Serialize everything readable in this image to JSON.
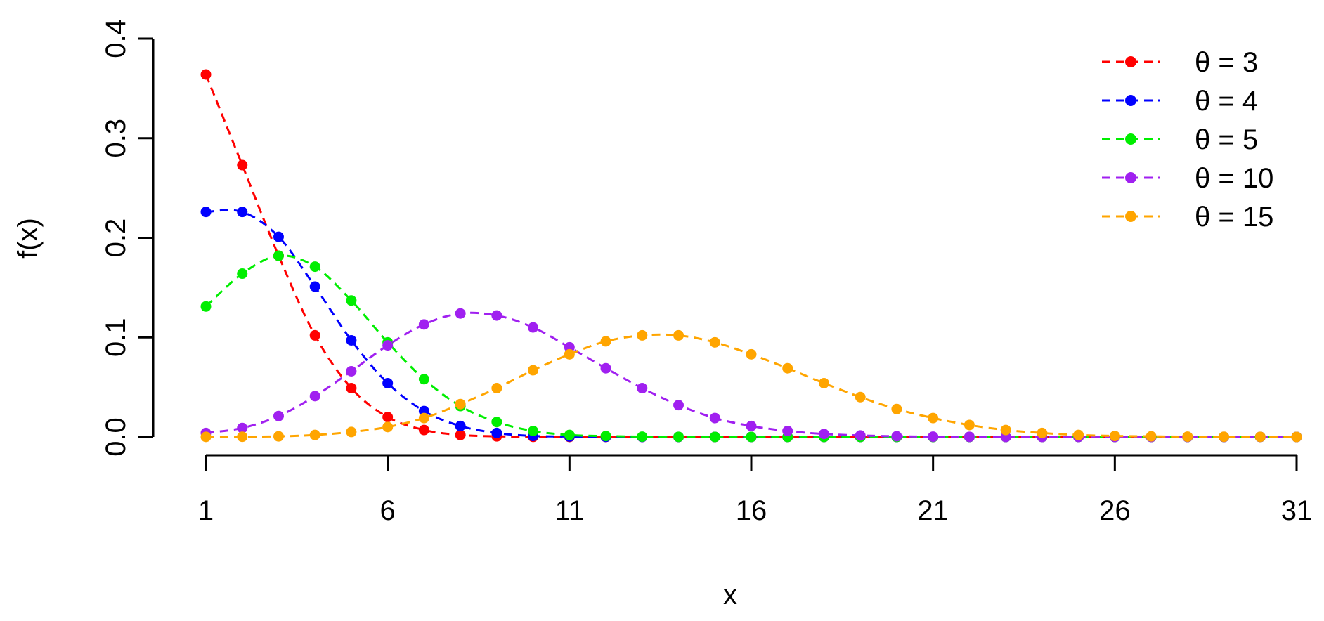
{
  "chart_data": {
    "type": "line",
    "title": "",
    "xlabel": "x",
    "ylabel": "f(x)",
    "xlim": [
      1,
      31
    ],
    "ylim": [
      0,
      0.4
    ],
    "x_ticks": [
      "1",
      "6",
      "11",
      "16",
      "21",
      "26",
      "31"
    ],
    "y_ticks": [
      "0.0",
      "0.1",
      "0.2",
      "0.3",
      "0.4"
    ],
    "grid": false,
    "legend_position": "top-right",
    "x": [
      1,
      2,
      3,
      4,
      5,
      6,
      7,
      8,
      9,
      10,
      11,
      12,
      13,
      14,
      15,
      16,
      17,
      18,
      19,
      20,
      21,
      22,
      23,
      24,
      25,
      26,
      27,
      28,
      29,
      30,
      31
    ],
    "series": [
      {
        "name": "θ = 3",
        "color": "#ff0000",
        "values": [
          0.364,
          0.273,
          0.182,
          0.102,
          0.049,
          0.02,
          0.007,
          0.002,
          0.0006,
          0.0001,
          0,
          0,
          0,
          0,
          0,
          0,
          0,
          0,
          0,
          0,
          0,
          0,
          0,
          0,
          0,
          0,
          0,
          0,
          0,
          0,
          0
        ]
      },
      {
        "name": "θ = 4",
        "color": "#0000ff",
        "values": [
          0.226,
          0.226,
          0.201,
          0.151,
          0.097,
          0.054,
          0.026,
          0.011,
          0.004,
          0.001,
          0.0004,
          0.0001,
          0,
          0,
          0,
          0,
          0,
          0,
          0,
          0,
          0,
          0,
          0,
          0,
          0,
          0,
          0,
          0,
          0,
          0,
          0
        ]
      },
      {
        "name": "θ = 5",
        "color": "#00ee00",
        "values": [
          0.131,
          0.164,
          0.182,
          0.171,
          0.137,
          0.095,
          0.058,
          0.031,
          0.015,
          0.006,
          0.002,
          0.0009,
          0.0003,
          0.0001,
          0,
          0,
          0,
          0,
          0,
          0,
          0,
          0,
          0,
          0,
          0,
          0,
          0,
          0,
          0,
          0,
          0
        ]
      },
      {
        "name": "θ = 10",
        "color": "#a020f0",
        "values": [
          0.004,
          0.009,
          0.021,
          0.041,
          0.066,
          0.092,
          0.113,
          0.124,
          0.122,
          0.11,
          0.09,
          0.069,
          0.049,
          0.032,
          0.019,
          0.011,
          0.006,
          0.003,
          0.0015,
          0.0007,
          0.0003,
          0.0001,
          0,
          0,
          0,
          0,
          0,
          0,
          0,
          0,
          0
        ]
      },
      {
        "name": "θ = 15",
        "color": "#ffa500",
        "values": [
          0.0001,
          0.0002,
          0.0006,
          0.002,
          0.005,
          0.01,
          0.019,
          0.033,
          0.049,
          0.067,
          0.083,
          0.096,
          0.102,
          0.102,
          0.095,
          0.083,
          0.069,
          0.054,
          0.04,
          0.028,
          0.019,
          0.012,
          0.007,
          0.004,
          0.002,
          0.001,
          0.0006,
          0.0003,
          0.0002,
          0.0001,
          0
        ]
      }
    ]
  }
}
